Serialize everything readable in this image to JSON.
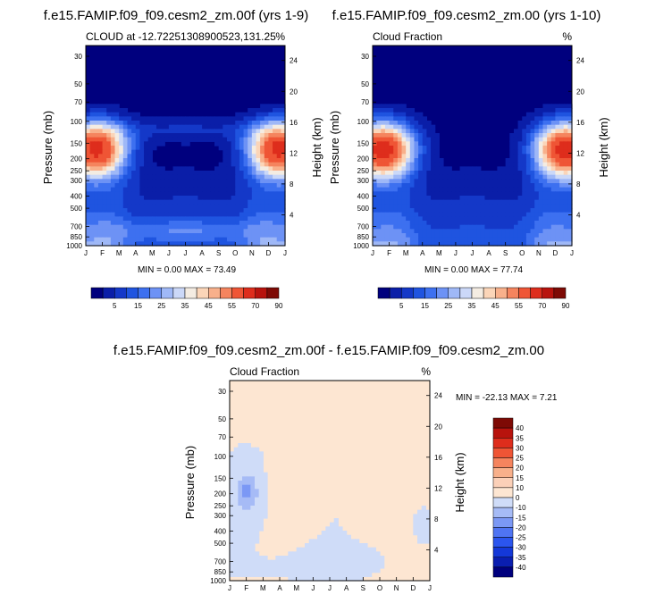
{
  "chart_data": [
    {
      "type": "heatmap",
      "title": "f.e15.FAMIP.f09_f09.cesm2_zm.00f (yrs 1-9)",
      "subtitle_left": "CLOUD at -12.72251308900523,131.25",
      "subtitle_right": "%",
      "ylabel": "Pressure (mb)",
      "ylabel_right": "Height (km)",
      "x": [
        "J",
        "F",
        "M",
        "A",
        "M",
        "J",
        "J",
        "A",
        "S",
        "O",
        "N",
        "D",
        "J"
      ],
      "y_ticks": [
        "30",
        "50",
        "70",
        "100",
        "150",
        "200",
        "250",
        "300",
        "400",
        "500",
        "700",
        "850",
        "1000"
      ],
      "y_right_ticks": [
        "24",
        "20",
        "16",
        "12",
        "8",
        "4"
      ],
      "min_max": "MIN =   0.00 MAX =  73.49",
      "colorbar_labels": [
        "5",
        "15",
        "25",
        "35",
        "45",
        "55",
        "70",
        "90"
      ]
    },
    {
      "type": "heatmap",
      "title": "f.e15.FAMIP.f09_f09.cesm2_zm.00 (yrs 1-10)",
      "subtitle_left": "Cloud Fraction",
      "subtitle_right": "%",
      "ylabel": "Pressure (mb)",
      "ylabel_right": "Height (km)",
      "x": [
        "J",
        "F",
        "M",
        "A",
        "M",
        "J",
        "J",
        "A",
        "S",
        "O",
        "N",
        "D",
        "J"
      ],
      "y_ticks": [
        "30",
        "50",
        "70",
        "100",
        "150",
        "200",
        "250",
        "300",
        "400",
        "500",
        "700",
        "850",
        "1000"
      ],
      "y_right_ticks": [
        "24",
        "20",
        "16",
        "12",
        "8",
        "4"
      ],
      "min_max": "MIN =   0.00 MAX =  77.74",
      "colorbar_labels": [
        "5",
        "15",
        "25",
        "35",
        "45",
        "55",
        "70",
        "90"
      ]
    },
    {
      "type": "heatmap",
      "title": "f.e15.FAMIP.f09_f09.cesm2_zm.00f - f.e15.FAMIP.f09_f09.cesm2_zm.00",
      "subtitle_left": "Cloud Fraction",
      "subtitle_right": "%",
      "ylabel": "Pressure (mb)",
      "ylabel_right": "Height (km)",
      "x": [
        "J",
        "F",
        "M",
        "A",
        "M",
        "J",
        "J",
        "A",
        "S",
        "O",
        "N",
        "D",
        "J"
      ],
      "y_ticks": [
        "30",
        "50",
        "70",
        "100",
        "150",
        "200",
        "250",
        "300",
        "400",
        "500",
        "700",
        "850",
        "1000"
      ],
      "y_right_ticks": [
        "24",
        "20",
        "16",
        "12",
        "8",
        "4"
      ],
      "min_max": "MIN = -22.13 MAX =   7.21",
      "colorbar_labels": [
        "40",
        "35",
        "30",
        "25",
        "20",
        "15",
        "10",
        "0",
        "-10",
        "-15",
        "-20",
        "-25",
        "-30",
        "-35",
        "-40"
      ]
    }
  ],
  "colors": {
    "seq_scale": [
      "#00007e",
      "#0a1ea8",
      "#1438c8",
      "#1f54e0",
      "#3d70f0",
      "#6d92f5",
      "#9fb8f7",
      "#cbd8f8",
      "#f4ece2",
      "#fbd5b8",
      "#f8b08b",
      "#f5845e",
      "#ef5535",
      "#de2d1c",
      "#b8130d",
      "#7e0a05"
    ],
    "diff_scale": [
      "#00007e",
      "#0a1eb0",
      "#1438d8",
      "#2b55ee",
      "#4f74f3",
      "#7b98f5",
      "#a6bbf6",
      "#cfdcf8",
      "#fde6d2",
      "#fbd0b8",
      "#f8b08b",
      "#f5845e",
      "#ef5535",
      "#de2d1c",
      "#b8130d",
      "#7e0a05"
    ]
  }
}
